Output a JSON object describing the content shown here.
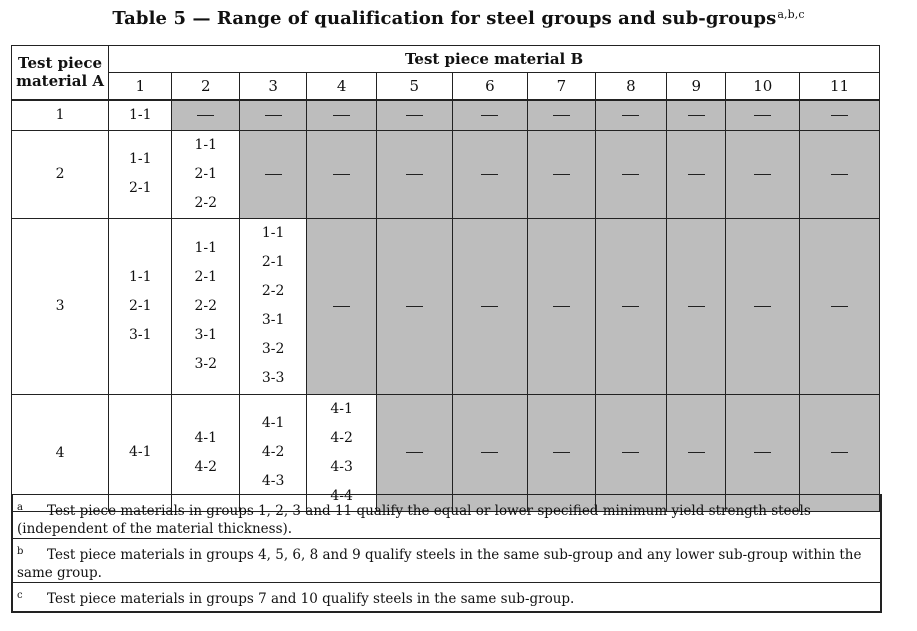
{
  "table": {
    "title": "Table 5 — Range of qualification for steel groups and sub-groups",
    "title_sup": "a,b,c",
    "header_a": [
      "Test piece",
      "material A"
    ],
    "header_b": "Test piece material B",
    "columns": [
      "1",
      "2",
      "3",
      "4",
      "5",
      "6",
      "7",
      "8",
      "9",
      "10",
      "11"
    ],
    "rows": [
      {
        "label": "1",
        "cells": [
          [
            "1-1"
          ]
        ]
      },
      {
        "label": "2",
        "cells": [
          [
            "1-1",
            "2-1"
          ],
          [
            "1-1",
            "2-1",
            "2-2"
          ]
        ]
      },
      {
        "label": "3",
        "cells": [
          [
            "1-1",
            "2-1",
            "3-1"
          ],
          [
            "1-1",
            "2-1",
            "2-2",
            "3-1",
            "3-2"
          ],
          [
            "1-1",
            "2-1",
            "2-2",
            "3-1",
            "3-2",
            "3-3"
          ]
        ]
      },
      {
        "label": "4",
        "cells": [
          [
            "4-1"
          ],
          [
            "4-1",
            "4-2"
          ],
          [
            "4-1",
            "4-2",
            "4-3"
          ],
          [
            "4-1",
            "4-2",
            "4-3",
            "4-4"
          ]
        ]
      }
    ],
    "empty_marker": "—",
    "shading_color": "#bdbdbd"
  },
  "footnotes": [
    {
      "mark": "a",
      "text": "Test piece materials in groups 1, 2, 3 and 11 qualify the equal or lower specified minimum yield strength steels (independent of the material thickness)."
    },
    {
      "mark": "b",
      "text": "Test piece materials in groups 4, 5, 6, 8 and 9 qualify steels in the same sub-group and any lower sub-group within the same group."
    },
    {
      "mark": "c",
      "text": "Test piece materials in groups 7 and 10 qualify steels in the same sub-group."
    }
  ]
}
